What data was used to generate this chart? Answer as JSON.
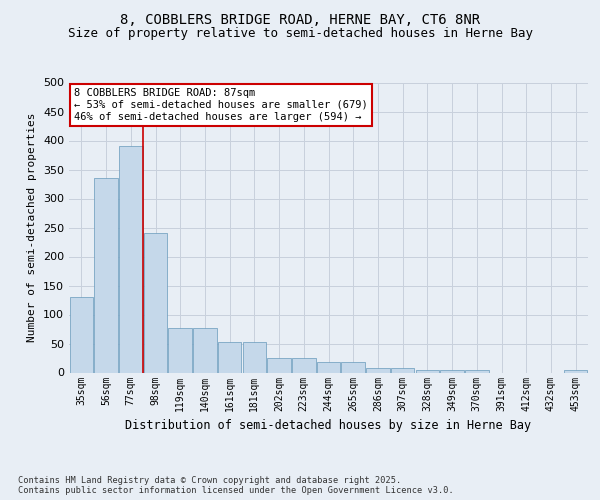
{
  "title1": "8, COBBLERS BRIDGE ROAD, HERNE BAY, CT6 8NR",
  "title2": "Size of property relative to semi-detached houses in Herne Bay",
  "xlabel": "Distribution of semi-detached houses by size in Herne Bay",
  "ylabel": "Number of semi-detached properties",
  "categories": [
    "35sqm",
    "56sqm",
    "77sqm",
    "98sqm",
    "119sqm",
    "140sqm",
    "161sqm",
    "181sqm",
    "202sqm",
    "223sqm",
    "244sqm",
    "265sqm",
    "286sqm",
    "307sqm",
    "328sqm",
    "349sqm",
    "370sqm",
    "391sqm",
    "412sqm",
    "432sqm",
    "453sqm"
  ],
  "values": [
    131,
    335,
    391,
    241,
    76,
    76,
    52,
    52,
    25,
    25,
    18,
    18,
    7,
    7,
    5,
    5,
    4,
    0,
    0,
    0,
    4
  ],
  "bar_color": "#c5d8ea",
  "bar_edge_color": "#6699bb",
  "grid_color": "#c8d0dc",
  "vline_color": "#cc0000",
  "annotation_text": "8 COBBLERS BRIDGE ROAD: 87sqm\n← 53% of semi-detached houses are smaller (679)\n46% of semi-detached houses are larger (594) →",
  "annotation_box_color": "#ffffff",
  "annotation_box_edge": "#cc0000",
  "ylim": [
    0,
    500
  ],
  "yticks": [
    0,
    50,
    100,
    150,
    200,
    250,
    300,
    350,
    400,
    450,
    500
  ],
  "footer": "Contains HM Land Registry data © Crown copyright and database right 2025.\nContains public sector information licensed under the Open Government Licence v3.0.",
  "bg_color": "#e8eef5",
  "plot_bg_color": "#e8eef5",
  "title1_fontsize": 10,
  "title2_fontsize": 9
}
